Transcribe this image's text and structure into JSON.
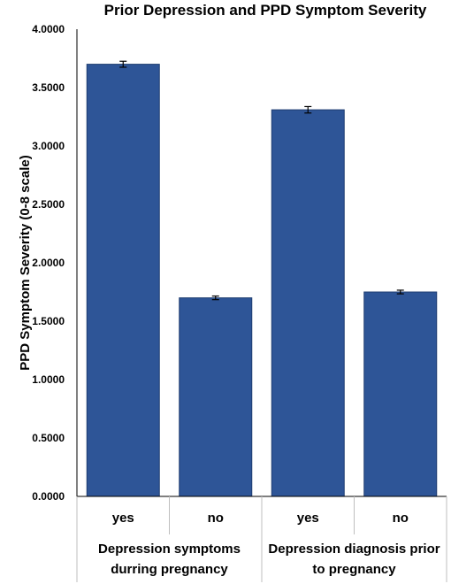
{
  "chart_data": {
    "type": "bar",
    "title": "Prior Depression and PPD Symptom Severity",
    "ylabel": "PPD Symptom Severity (0-8 scale)",
    "xlabel": "",
    "ylim": [
      0,
      4
    ],
    "ytick_step": 0.5,
    "ytick_decimals": 4,
    "grid": false,
    "legend": "none",
    "bar_color": "#2e5597",
    "bar_edge_color": "#1f3d70",
    "categories": [
      "yes",
      "no",
      "yes",
      "no"
    ],
    "groups": [
      {
        "label_lines": [
          "Depression symptoms",
          "durring pregnancy"
        ],
        "categories": [
          0,
          1
        ]
      },
      {
        "label_lines": [
          "Depression diagnosis prior",
          "to pregnancy"
        ],
        "categories": [
          2,
          3
        ]
      }
    ],
    "values": [
      3.7,
      1.7,
      3.31,
      1.75
    ],
    "error": [
      0.018,
      0.008,
      0.02,
      0.008
    ]
  }
}
